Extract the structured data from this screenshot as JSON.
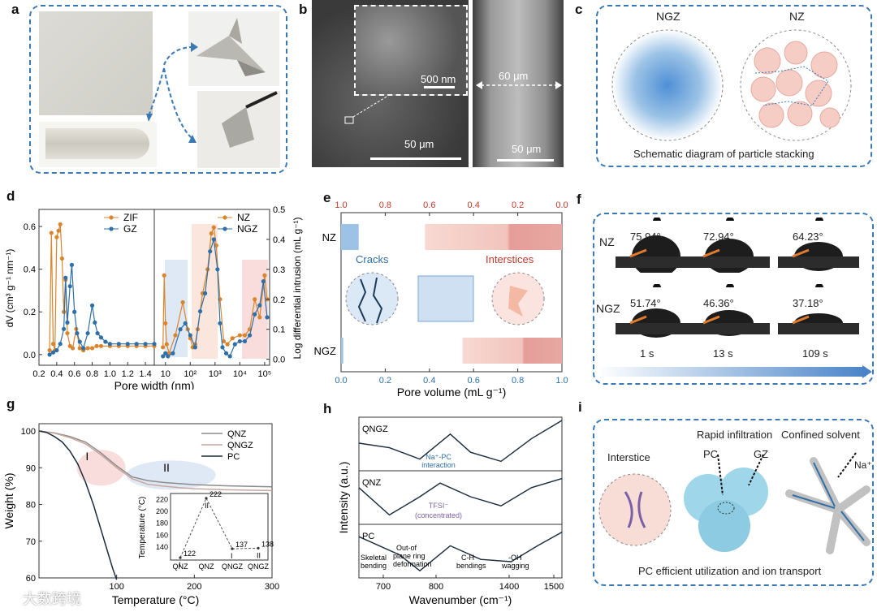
{
  "panel_labels": {
    "a": "a",
    "b": "b",
    "c": "c",
    "d": "d",
    "e": "e",
    "f": "f",
    "g": "g",
    "h": "h",
    "i": "i"
  },
  "panel_b": {
    "inset_scale": "500 nm",
    "thickness": "60 μm",
    "scale_left": "50 μm",
    "scale_right": "50 μm"
  },
  "panel_c": {
    "left_title": "NGZ",
    "right_title": "NZ",
    "caption": "Schematic diagram of particle stacking"
  },
  "chart_data": [
    {
      "id": "d",
      "type": "scatter",
      "xlabel": "Pore width (nm)",
      "ylabel_left": "dV (cm3 g-1 nm-1)",
      "ylabel_left_display": "dV (cm³ g⁻¹ nm⁻¹)",
      "ylabel_right": "Log differential intrusion (mL g-1)",
      "ylabel_right_display": "Log differential intrusion (mL g⁻¹)",
      "left": {
        "x_ticks": [
          "0.2",
          "0.4",
          "0.6",
          "0.8",
          "1.0",
          "1.2",
          "1.4"
        ],
        "y_ticks": [
          "0.0",
          "0.2",
          "0.4",
          "0.6"
        ],
        "xlim": [
          0.2,
          1.5
        ],
        "ylim": [
          -0.05,
          0.68
        ],
        "series": [
          {
            "name": "ZIF",
            "color": "#d9852d",
            "x": [
              0.32,
              0.34,
              0.36,
              0.38,
              0.4,
              0.42,
              0.44,
              0.46,
              0.48,
              0.5,
              0.52,
              0.55,
              0.58,
              0.62,
              0.66,
              0.7,
              0.75,
              0.8,
              0.85,
              0.9,
              1.0,
              1.1,
              1.2,
              1.3,
              1.4,
              1.5
            ],
            "y": [
              0.02,
              0.57,
              0.05,
              0.02,
              0.55,
              0.58,
              0.61,
              0.45,
              0.2,
              0.35,
              0.1,
              0.04,
              0.03,
              0.12,
              0.03,
              0.02,
              0.03,
              0.03,
              0.04,
              0.04,
              0.04,
              0.04,
              0.04,
              0.04,
              0.04,
              0.04
            ]
          },
          {
            "name": "GZ",
            "color": "#2e6fa8",
            "x": [
              0.32,
              0.36,
              0.4,
              0.44,
              0.48,
              0.5,
              0.52,
              0.55,
              0.57,
              0.6,
              0.63,
              0.66,
              0.7,
              0.75,
              0.8,
              0.83,
              0.86,
              0.9,
              0.95,
              1.0,
              1.1,
              1.2,
              1.3,
              1.4,
              1.5
            ],
            "y": [
              0.0,
              0.01,
              0.02,
              0.05,
              0.12,
              0.36,
              0.15,
              0.32,
              0.42,
              0.2,
              0.1,
              0.06,
              0.03,
              0.1,
              0.23,
              0.15,
              0.1,
              0.08,
              0.06,
              0.05,
              0.05,
              0.05,
              0.05,
              0.05,
              0.05
            ]
          }
        ]
      },
      "right": {
        "x_ticks": [
          "10",
          "10^2",
          "10^3",
          "10^4",
          "10^5"
        ],
        "x_ticks_display": [
          "10",
          "10²",
          "10³",
          "10⁴",
          "10⁵"
        ],
        "y_ticks": [
          "0.0",
          "0.1",
          "0.2",
          "0.3",
          "0.4",
          "0.5"
        ],
        "xlim_log": [
          0.55,
          5.2
        ],
        "ylim": [
          -0.02,
          0.5
        ],
        "series": [
          {
            "name": "NZ",
            "color": "#d9852d",
            "logx": [
              0.9,
              0.95,
              1.0,
              1.05,
              1.15,
              1.4,
              1.7,
              1.9,
              2.0,
              2.1,
              2.2,
              2.3,
              2.5,
              2.7,
              2.85,
              2.95,
              3.05,
              3.2,
              3.35,
              3.5,
              3.7,
              4.0,
              4.2,
              4.4,
              4.6,
              4.8,
              5.0,
              5.1
            ],
            "y": [
              0.04,
              0.28,
              0.12,
              0.05,
              0.02,
              0.08,
              0.19,
              0.1,
              0.07,
              0.04,
              0.05,
              0.1,
              0.22,
              0.3,
              0.42,
              0.44,
              0.38,
              0.2,
              0.06,
              0.05,
              0.07,
              0.08,
              0.08,
              0.1,
              0.2,
              0.14,
              0.28,
              0.2
            ]
          },
          {
            "name": "NGZ",
            "color": "#2e6fa8",
            "logx": [
              0.9,
              1.0,
              1.1,
              1.3,
              1.6,
              1.8,
              2.0,
              2.2,
              2.4,
              2.6,
              2.8,
              2.95,
              3.1,
              3.2,
              3.3,
              3.45,
              3.6,
              3.8,
              4.0,
              4.2,
              4.4,
              4.6,
              4.8,
              4.95,
              5.1
            ],
            "y": [
              0.01,
              0.02,
              0.01,
              0.02,
              0.1,
              0.12,
              0.08,
              0.04,
              0.16,
              0.22,
              0.36,
              0.4,
              0.3,
              0.12,
              0.04,
              0.02,
              0.01,
              0.05,
              0.06,
              0.06,
              0.08,
              0.15,
              0.18,
              0.26,
              0.14
            ]
          }
        ]
      }
    },
    {
      "id": "e",
      "type": "bar",
      "xlabel": "Pore volume (mL g-1)",
      "xlabel_display": "Pore volume (mL g⁻¹)",
      "bottom_ticks": [
        "0.0",
        "0.2",
        "0.4",
        "0.6",
        "0.8",
        "1.0"
      ],
      "top_ticks": [
        "1.0",
        "0.8",
        "0.6",
        "0.4",
        "0.2",
        "0.0"
      ],
      "categories": [
        "NZ",
        "NGZ"
      ],
      "series": [
        {
          "name": "Cracks",
          "color": "#9cc3e6",
          "values": [
            0.08,
            0.01
          ]
        },
        {
          "name": "Interstices",
          "color": "#f1c4bd",
          "values": [
            0.62,
            0.45
          ]
        }
      ],
      "annotations": [
        "Cracks",
        "Interstices"
      ]
    },
    {
      "id": "g",
      "type": "line",
      "xlabel": "Temperature (°C)",
      "ylabel": "Weight (%)",
      "x_ticks": [
        "100",
        "200",
        "300"
      ],
      "y_ticks": [
        "60",
        "70",
        "80",
        "90",
        "100"
      ],
      "xlim": [
        0,
        300
      ],
      "ylim": [
        60,
        102
      ],
      "region_labels": [
        "I",
        "II"
      ],
      "series": [
        {
          "name": "QNZ",
          "color": "#8c8c8c",
          "x": [
            0,
            20,
            40,
            60,
            80,
            100,
            120,
            140,
            160,
            180,
            200,
            240,
            300
          ],
          "y": [
            100,
            99.5,
            98.5,
            97,
            94,
            90.5,
            87.5,
            86.5,
            86,
            85.7,
            85.4,
            85.1,
            84.8
          ]
        },
        {
          "name": "QNGZ",
          "color": "#c9a7a0",
          "x": [
            0,
            20,
            40,
            60,
            80,
            100,
            120,
            140,
            160,
            180,
            200,
            240,
            300
          ],
          "y": [
            100,
            99.4,
            98.2,
            96.5,
            93.5,
            90,
            87,
            85.5,
            85,
            84.6,
            84.3,
            84,
            83.8
          ]
        },
        {
          "name": "PC",
          "color": "#1b2a3c",
          "x": [
            0,
            10,
            20,
            30,
            40,
            50,
            60,
            70,
            80,
            90,
            95,
            100
          ],
          "y": [
            100,
            99.6,
            98.5,
            97,
            94.5,
            91,
            86,
            80,
            73,
            66,
            62.5,
            59.5
          ]
        }
      ],
      "inset": {
        "ylabel": "Temperature (°C)",
        "y_ticks": [
          "140",
          "160",
          "180",
          "200",
          "220"
        ],
        "categories": [
          "QNZ",
          "QNZ",
          "QNGZ",
          "QNGZ"
        ],
        "values": [
          122,
          222,
          137,
          138
        ],
        "labels": [
          "122",
          "222",
          "137",
          "138"
        ],
        "phase_labels": [
          "I",
          "II",
          "I",
          "II"
        ]
      }
    },
    {
      "id": "h",
      "type": "line",
      "xlabel": "Wavenumber (cm-1)",
      "xlabel_display": "Wavenumber (cm⁻¹)",
      "ylabel": "Intensity (a.u.)",
      "x_ticks": [
        "700",
        "800",
        "1400",
        "1500"
      ],
      "categories": [
        "QNGZ",
        "QNZ",
        "PC"
      ],
      "annotations": [
        "Na+-PC interaction",
        "TFSI- (concentrated)",
        "Skeletal bending",
        "Out-of plane ring deformation",
        "C-H bendings",
        "-OH wagging"
      ]
    }
  ],
  "panel_e_labels": {
    "nz": "NZ",
    "ngz": "NGZ",
    "cracks": "Cracks",
    "interstices": "Interstices"
  },
  "panel_f": {
    "row_labels": [
      "NZ",
      "NGZ"
    ],
    "nz_angles": [
      "75.94°",
      "72.94°",
      "64.23°"
    ],
    "ngz_angles": [
      "51.74°",
      "46.36°",
      "37.18°"
    ],
    "times": [
      "1 s",
      "13 s",
      "109 s"
    ]
  },
  "panel_h_text": {
    "na_pc": "Na⁺-PC",
    "interaction": "interaction",
    "tfsi": "TFSI⁻",
    "concentrated": "(concentrated)",
    "skeletal1": "Skeletal",
    "skeletal2": "bending",
    "oop1": "Out-of",
    "oop2": "plane ring",
    "oop3": "deformation",
    "ch1": "C-H",
    "ch2": "bendings",
    "oh1": "-OH",
    "oh2": "wagging"
  },
  "panel_i": {
    "rapid": "Rapid infiltration",
    "confined": "Confined solvent",
    "interstice": "Interstice",
    "pc": "PC",
    "gz": "GZ",
    "na": "Na⁺",
    "caption": "PC efficient utilization and ion transport"
  },
  "watermark": "大数跨境",
  "colors": {
    "accent": "#3a79b4",
    "orange": "#d9852d",
    "blue": "#2e6fa8",
    "pink": "#f1c4bd"
  }
}
